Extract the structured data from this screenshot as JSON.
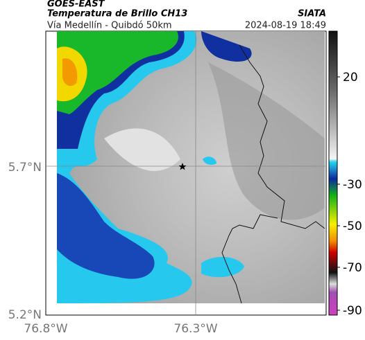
{
  "header": {
    "title": "GOES-EAST",
    "subtitle": "Temperatura de Brillo CH13",
    "source": "SIATA",
    "caption": "Vía Medellín - Quibdó 50km",
    "timestamp": "2024-08-19 18:49"
  },
  "map": {
    "lat_labels": [
      "5.7°N",
      "5.2°N"
    ],
    "lon_labels": [
      "76.8°W",
      "76.3°W"
    ]
  },
  "colorbar": {
    "ticks": [
      20,
      -30,
      -50,
      -70,
      -90
    ]
  }
}
